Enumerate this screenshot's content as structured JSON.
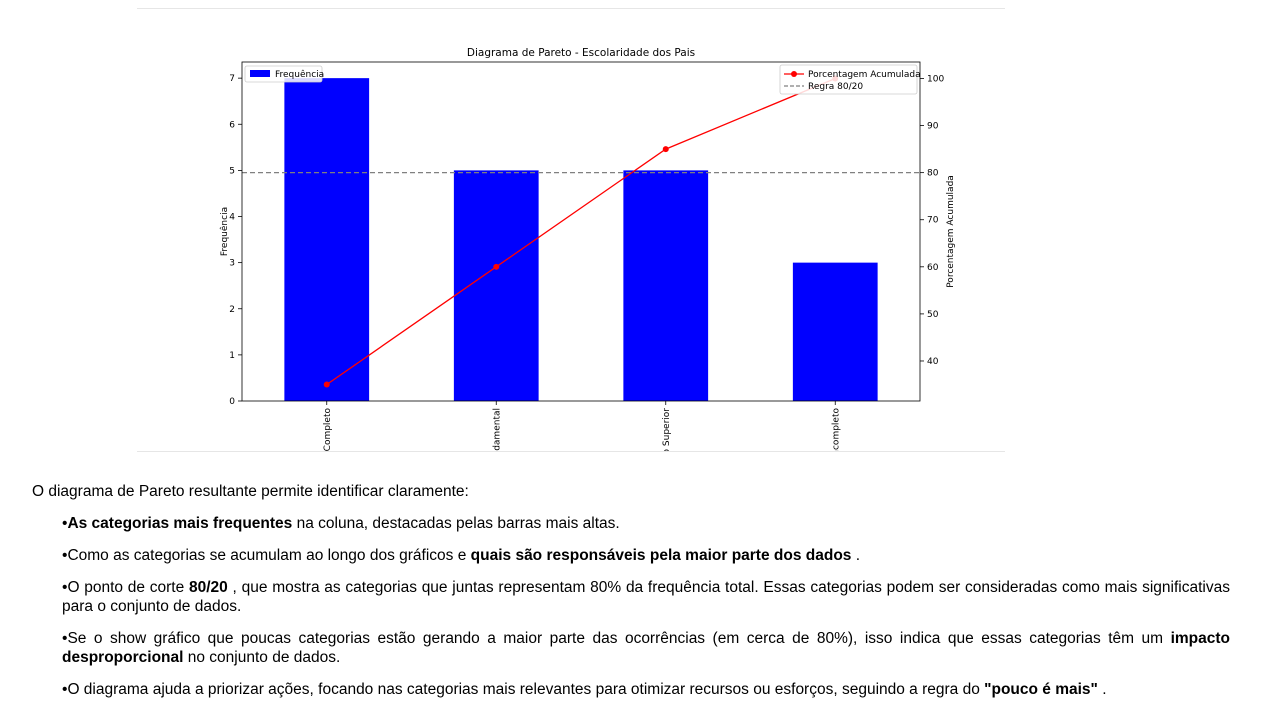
{
  "chart_data": {
    "type": "bar",
    "title": "Diagrama de Pareto - Escolaridade dos Pais",
    "categories": [
      "Completo",
      "ndamental",
      "o Superior",
      "ncompleto"
    ],
    "series": [
      {
        "name": "Frequência",
        "type": "bar",
        "axis": "left",
        "color": "#0000ff",
        "values": [
          7,
          5,
          5,
          3
        ]
      },
      {
        "name": "Porcentagem Acumulada",
        "type": "line",
        "axis": "right",
        "color": "#ff0000",
        "values": [
          35,
          60,
          85,
          100
        ]
      }
    ],
    "reference_line": {
      "name": "Regra 80/20",
      "value": 80,
      "axis": "right",
      "color": "#808080",
      "style": "dashed"
    },
    "ylabel": "Frequência",
    "ylabel_right": "Porcentagem Acumulada",
    "ylim": [
      0,
      7.35
    ],
    "ylim_right": [
      31.5,
      103.5
    ],
    "yticks": [
      0,
      1,
      2,
      3,
      4,
      5,
      6,
      7
    ],
    "yticks_right": [
      40,
      50,
      60,
      70,
      80,
      90,
      100
    ],
    "legend_left": "top-left",
    "legend_right": "top-right",
    "grid": false
  },
  "text": {
    "intro": "O diagrama de Pareto resultante permite identificar claramente:",
    "b1_bold": "As categorias mais frequentes",
    "b1_rest": " na coluna, destacadas pelas barras mais altas.",
    "b2_pre": "Como as categorias se acumulam ao longo dos gráficos e ",
    "b2_bold": "quais são responsáveis pela maior parte dos dados",
    "b2_post": " .",
    "b3_pre": "O ponto de corte ",
    "b3_bold": "80/20",
    "b3_post": " , que mostra as categorias que juntas representam 80% da frequência total. Essas categorias podem ser consideradas como mais significativas para o conjunto de dados.",
    "b4_pre": "Se o show gráfico que poucas categorias estão gerando a maior parte das ocorrências (em cerca de 80%), isso indica que essas categorias têm um ",
    "b4_bold": "impacto desproporcional",
    "b4_post": " no conjunto de dados.",
    "b5_pre": "O diagrama ajuda a priorizar ações, focando nas categorias mais relevantes para otimizar recursos ou esforços, seguindo a regra do ",
    "b5_bold": "\"pouco é mais\"",
    "b5_post": " ."
  }
}
